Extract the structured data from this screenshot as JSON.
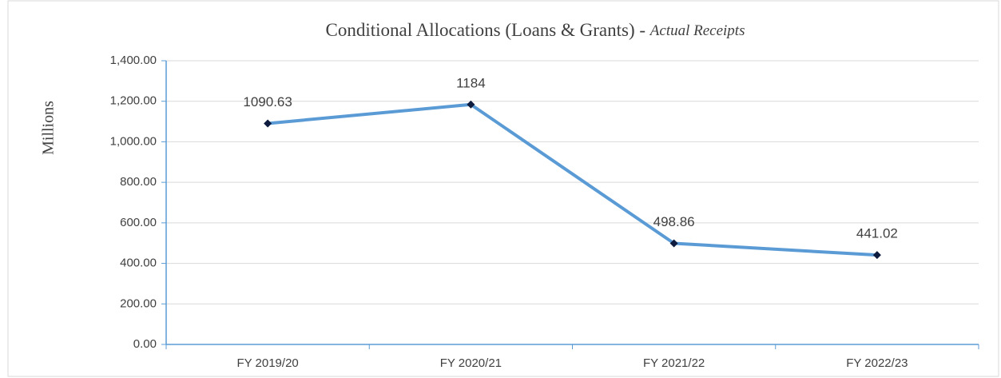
{
  "chart_data": {
    "type": "line",
    "title": "Conditional Allocations (Loans & Grants) -",
    "subtitle": "Actual Receipts",
    "y_label": "Millions",
    "categories": [
      "FY 2019/20",
      "FY 2020/21",
      "FY 2021/22",
      "FY 2022/23"
    ],
    "series": [
      {
        "name": "Conditional Allocations",
        "color": "#5b9bd5",
        "values": [
          1090.63,
          1184,
          498.86,
          441.02
        ]
      }
    ],
    "ylim": [
      0,
      1400
    ],
    "yticks": [
      {
        "value": 0,
        "label": "0.00"
      },
      {
        "value": 200,
        "label": "200.00"
      },
      {
        "value": 400,
        "label": "400.00"
      },
      {
        "value": 600,
        "label": "600.00"
      },
      {
        "value": 800,
        "label": "800.00"
      },
      {
        "value": 1000,
        "label": "1,000.00"
      },
      {
        "value": 1200,
        "label": "1,200.00"
      },
      {
        "value": 1400,
        "label": "1,400.00"
      }
    ],
    "grid": true,
    "data_labels": true
  }
}
